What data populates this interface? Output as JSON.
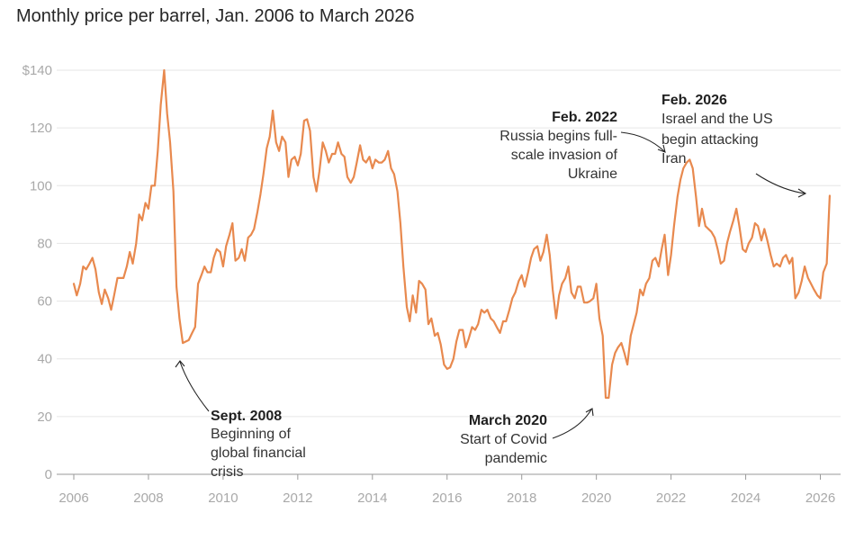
{
  "chart_data": {
    "type": "line",
    "title": "Monthly price per barrel, Jan. 2006 to March 2026",
    "xlabel": "",
    "ylabel": "",
    "xlim": [
      2006,
      2026.5
    ],
    "ylim": [
      0,
      140
    ],
    "line_color": "#e8894e",
    "grid": true,
    "y_ticks": [
      {
        "value": 140,
        "label": "$140"
      },
      {
        "value": 120,
        "label": "120"
      },
      {
        "value": 100,
        "label": "100"
      },
      {
        "value": 80,
        "label": "80"
      },
      {
        "value": 60,
        "label": "60"
      },
      {
        "value": 40,
        "label": "40"
      },
      {
        "value": 20,
        "label": "20"
      },
      {
        "value": 0,
        "label": "0"
      }
    ],
    "x_ticks": [
      {
        "value": 2006,
        "label": "2006"
      },
      {
        "value": 2008,
        "label": "2008"
      },
      {
        "value": 2010,
        "label": "2010"
      },
      {
        "value": 2012,
        "label": "2012"
      },
      {
        "value": 2014,
        "label": "2014"
      },
      {
        "value": 2016,
        "label": "2016"
      },
      {
        "value": 2018,
        "label": "2018"
      },
      {
        "value": 2020,
        "label": "2020"
      },
      {
        "value": 2022,
        "label": "2022"
      },
      {
        "value": 2024,
        "label": "2024"
      },
      {
        "value": 2026,
        "label": "2026"
      }
    ],
    "series": [
      {
        "name": "Price per barrel",
        "points": [
          [
            2006.0,
            66
          ],
          [
            2006.08,
            62
          ],
          [
            2006.17,
            66
          ],
          [
            2006.25,
            72
          ],
          [
            2006.33,
            71
          ],
          [
            2006.42,
            73
          ],
          [
            2006.5,
            75
          ],
          [
            2006.58,
            71
          ],
          [
            2006.67,
            63
          ],
          [
            2006.75,
            59
          ],
          [
            2006.83,
            64
          ],
          [
            2006.92,
            61
          ],
          [
            2007.0,
            57
          ],
          [
            2007.08,
            62
          ],
          [
            2007.17,
            68
          ],
          [
            2007.25,
            68
          ],
          [
            2007.33,
            68
          ],
          [
            2007.42,
            72
          ],
          [
            2007.5,
            77
          ],
          [
            2007.58,
            73
          ],
          [
            2007.67,
            80
          ],
          [
            2007.75,
            90
          ],
          [
            2007.83,
            88
          ],
          [
            2007.92,
            94
          ],
          [
            2008.0,
            92
          ],
          [
            2008.08,
            100
          ],
          [
            2008.17,
            100
          ],
          [
            2008.25,
            112
          ],
          [
            2008.33,
            128
          ],
          [
            2008.42,
            140
          ],
          [
            2008.5,
            125
          ],
          [
            2008.58,
            115
          ],
          [
            2008.67,
            98
          ],
          [
            2008.75,
            65
          ],
          [
            2008.83,
            54
          ],
          [
            2008.92,
            45.5
          ],
          [
            2009.0,
            46
          ],
          [
            2009.08,
            46.5
          ],
          [
            2009.17,
            49
          ],
          [
            2009.25,
            51
          ],
          [
            2009.33,
            66
          ],
          [
            2009.42,
            69
          ],
          [
            2009.5,
            72
          ],
          [
            2009.58,
            70
          ],
          [
            2009.67,
            70
          ],
          [
            2009.75,
            75
          ],
          [
            2009.83,
            78
          ],
          [
            2009.92,
            77
          ],
          [
            2010.0,
            72
          ],
          [
            2010.08,
            79
          ],
          [
            2010.17,
            83
          ],
          [
            2010.25,
            87
          ],
          [
            2010.33,
            74
          ],
          [
            2010.42,
            75
          ],
          [
            2010.5,
            78
          ],
          [
            2010.58,
            74
          ],
          [
            2010.67,
            82
          ],
          [
            2010.75,
            83
          ],
          [
            2010.83,
            85
          ],
          [
            2010.92,
            91
          ],
          [
            2011.0,
            97
          ],
          [
            2011.08,
            104
          ],
          [
            2011.17,
            113
          ],
          [
            2011.25,
            117
          ],
          [
            2011.33,
            126
          ],
          [
            2011.42,
            115
          ],
          [
            2011.5,
            112
          ],
          [
            2011.58,
            117
          ],
          [
            2011.67,
            115
          ],
          [
            2011.75,
            103
          ],
          [
            2011.83,
            109
          ],
          [
            2011.92,
            110
          ],
          [
            2012.0,
            107
          ],
          [
            2012.08,
            111
          ],
          [
            2012.17,
            122.5
          ],
          [
            2012.25,
            123
          ],
          [
            2012.33,
            119
          ],
          [
            2012.42,
            103
          ],
          [
            2012.5,
            98
          ],
          [
            2012.58,
            105
          ],
          [
            2012.67,
            115
          ],
          [
            2012.75,
            112
          ],
          [
            2012.83,
            108
          ],
          [
            2012.92,
            111
          ],
          [
            2013.0,
            111
          ],
          [
            2013.08,
            115
          ],
          [
            2013.17,
            111
          ],
          [
            2013.25,
            110
          ],
          [
            2013.33,
            103
          ],
          [
            2013.42,
            101
          ],
          [
            2013.5,
            103
          ],
          [
            2013.58,
            108
          ],
          [
            2013.67,
            114
          ],
          [
            2013.75,
            109
          ],
          [
            2013.83,
            108
          ],
          [
            2013.92,
            110
          ],
          [
            2014.0,
            106
          ],
          [
            2014.08,
            109
          ],
          [
            2014.17,
            108
          ],
          [
            2014.25,
            108
          ],
          [
            2014.33,
            109
          ],
          [
            2014.42,
            112
          ],
          [
            2014.5,
            106
          ],
          [
            2014.58,
            104
          ],
          [
            2014.67,
            98
          ],
          [
            2014.75,
            87
          ],
          [
            2014.83,
            72
          ],
          [
            2014.92,
            58
          ],
          [
            2015.0,
            53
          ],
          [
            2015.08,
            62
          ],
          [
            2015.17,
            56
          ],
          [
            2015.25,
            67
          ],
          [
            2015.33,
            66
          ],
          [
            2015.42,
            64
          ],
          [
            2015.5,
            52
          ],
          [
            2015.58,
            54
          ],
          [
            2015.67,
            48
          ],
          [
            2015.75,
            49
          ],
          [
            2015.83,
            45
          ],
          [
            2015.92,
            38
          ],
          [
            2016.0,
            36.5
          ],
          [
            2016.08,
            37
          ],
          [
            2016.17,
            40
          ],
          [
            2016.25,
            46
          ],
          [
            2016.33,
            50
          ],
          [
            2016.42,
            50
          ],
          [
            2016.5,
            44
          ],
          [
            2016.58,
            47
          ],
          [
            2016.67,
            51
          ],
          [
            2016.75,
            50
          ],
          [
            2016.83,
            52
          ],
          [
            2016.92,
            57
          ],
          [
            2017.0,
            56
          ],
          [
            2017.08,
            57
          ],
          [
            2017.17,
            54
          ],
          [
            2017.25,
            53
          ],
          [
            2017.33,
            51
          ],
          [
            2017.42,
            49
          ],
          [
            2017.5,
            53
          ],
          [
            2017.58,
            53
          ],
          [
            2017.67,
            57
          ],
          [
            2017.75,
            61
          ],
          [
            2017.83,
            63
          ],
          [
            2017.92,
            67
          ],
          [
            2018.0,
            69
          ],
          [
            2018.08,
            65
          ],
          [
            2018.17,
            70
          ],
          [
            2018.25,
            75
          ],
          [
            2018.33,
            78
          ],
          [
            2018.42,
            79
          ],
          [
            2018.5,
            74
          ],
          [
            2018.58,
            77
          ],
          [
            2018.67,
            83
          ],
          [
            2018.75,
            76
          ],
          [
            2018.83,
            64
          ],
          [
            2018.92,
            54
          ],
          [
            2019.0,
            62
          ],
          [
            2019.08,
            66
          ],
          [
            2019.17,
            68
          ],
          [
            2019.25,
            72
          ],
          [
            2019.33,
            63
          ],
          [
            2019.42,
            61
          ],
          [
            2019.5,
            65
          ],
          [
            2019.58,
            65
          ],
          [
            2019.67,
            59.5
          ],
          [
            2019.75,
            59.5
          ],
          [
            2019.83,
            60
          ],
          [
            2019.92,
            61
          ],
          [
            2020.0,
            66
          ],
          [
            2020.08,
            54
          ],
          [
            2020.17,
            48
          ],
          [
            2020.25,
            26.5
          ],
          [
            2020.33,
            26.5
          ],
          [
            2020.42,
            38
          ],
          [
            2020.5,
            42
          ],
          [
            2020.58,
            44
          ],
          [
            2020.67,
            45.5
          ],
          [
            2020.75,
            42
          ],
          [
            2020.83,
            38
          ],
          [
            2020.92,
            48
          ],
          [
            2021.0,
            52
          ],
          [
            2021.08,
            56
          ],
          [
            2021.17,
            64
          ],
          [
            2021.25,
            62
          ],
          [
            2021.33,
            66
          ],
          [
            2021.42,
            68
          ],
          [
            2021.5,
            74
          ],
          [
            2021.58,
            75
          ],
          [
            2021.67,
            72
          ],
          [
            2021.75,
            78
          ],
          [
            2021.83,
            83
          ],
          [
            2021.92,
            69
          ],
          [
            2022.0,
            76
          ],
          [
            2022.08,
            86
          ],
          [
            2022.17,
            96
          ],
          [
            2022.25,
            102
          ],
          [
            2022.33,
            106
          ],
          [
            2022.42,
            108
          ],
          [
            2022.5,
            109
          ],
          [
            2022.58,
            106
          ],
          [
            2022.67,
            96
          ],
          [
            2022.75,
            86
          ],
          [
            2022.83,
            92
          ],
          [
            2022.92,
            86
          ],
          [
            2023.0,
            85
          ],
          [
            2023.08,
            84
          ],
          [
            2023.17,
            82
          ],
          [
            2023.25,
            78
          ],
          [
            2023.33,
            73
          ],
          [
            2023.42,
            74
          ],
          [
            2023.5,
            80
          ],
          [
            2023.58,
            84
          ],
          [
            2023.67,
            88
          ],
          [
            2023.75,
            92
          ],
          [
            2023.83,
            86
          ],
          [
            2023.92,
            78
          ],
          [
            2024.0,
            77
          ],
          [
            2024.08,
            80
          ],
          [
            2024.17,
            82
          ],
          [
            2024.25,
            87
          ],
          [
            2024.33,
            86
          ],
          [
            2024.42,
            81
          ],
          [
            2024.5,
            85
          ],
          [
            2024.58,
            81
          ],
          [
            2024.67,
            76
          ],
          [
            2024.75,
            72
          ],
          [
            2024.83,
            73
          ],
          [
            2024.92,
            72
          ],
          [
            2025.0,
            75
          ],
          [
            2025.08,
            76
          ],
          [
            2025.17,
            73
          ],
          [
            2025.25,
            75
          ],
          [
            2025.33,
            61
          ],
          [
            2025.42,
            63
          ],
          [
            2025.5,
            67
          ],
          [
            2025.58,
            72
          ],
          [
            2025.67,
            68
          ],
          [
            2025.75,
            66
          ],
          [
            2025.83,
            64
          ],
          [
            2025.92,
            62
          ],
          [
            2026.0,
            61
          ],
          [
            2026.08,
            70
          ],
          [
            2026.17,
            73
          ],
          [
            2026.25,
            96.5
          ]
        ]
      }
    ],
    "annotations": [
      {
        "id": "sept-2008",
        "title": "Sept. 2008",
        "lines": [
          "Beginning of",
          "global financial",
          "crisis"
        ]
      },
      {
        "id": "feb-2022",
        "title": "Feb. 2022",
        "lines": [
          "Russia begins full-",
          "scale invasion of",
          "Ukraine"
        ]
      },
      {
        "id": "march-2020",
        "title": "March 2020",
        "lines": [
          "Start of Covid",
          "pandemic"
        ]
      },
      {
        "id": "feb-2026",
        "title": "Feb. 2026",
        "lines": [
          "Israel and the US",
          "begin attacking",
          "Iran"
        ]
      }
    ]
  }
}
